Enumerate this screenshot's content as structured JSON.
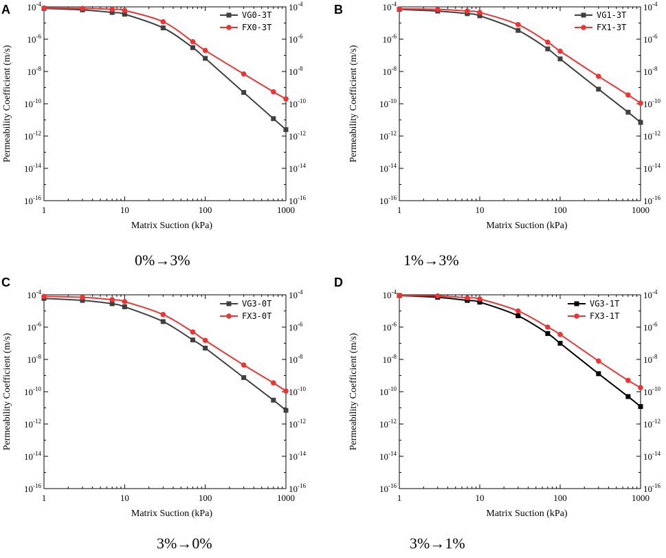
{
  "figure": {
    "captions": [
      "0%→3%",
      "1%→3%",
      "3%→0%",
      "3%→1%"
    ]
  },
  "chart_data": [
    {
      "panel": "A",
      "type": "line",
      "xscale": "log",
      "yscale": "log",
      "xlabel": "Matrix Suction (kPa)",
      "ylabel": "Permeability Coefficient (m/s)",
      "xlim": [
        1,
        1000
      ],
      "ylim": [
        1e-16,
        0.0001
      ],
      "xticks": [
        "1",
        "10",
        "100",
        "1000"
      ],
      "yticks_exp": [
        "-16",
        "-14",
        "-12",
        "-10",
        "-8",
        "-6",
        "-4"
      ],
      "ytick_base": "10",
      "legend_position": "top-right",
      "caption": "0%→3%",
      "series": [
        {
          "name": "VG0-3T",
          "color": "#404040",
          "marker": "square",
          "x": [
            1,
            3,
            7,
            10,
            30,
            70,
            100,
            300,
            700,
            1000
          ],
          "y": [
            8e-05,
            6.5e-05,
            4.5e-05,
            3.5e-05,
            5e-06,
            3e-07,
            6.5e-08,
            5e-10,
            1.2e-11,
            2.5e-12
          ]
        },
        {
          "name": "FX0-3T",
          "color": "#ee3333",
          "marker": "circle",
          "x": [
            1,
            3,
            7,
            10,
            30,
            70,
            100,
            300,
            700,
            1000
          ],
          "y": [
            8.5e-05,
            8e-05,
            7e-05,
            6e-05,
            1.2e-05,
            7e-07,
            2e-07,
            7e-09,
            5.5e-10,
            2e-10
          ]
        }
      ]
    },
    {
      "panel": "B",
      "type": "line",
      "xscale": "log",
      "yscale": "log",
      "xlabel": "Matrix Suction (kPa)",
      "ylabel": "Permeability Coefficient (m/s)",
      "xlim": [
        1,
        1000
      ],
      "ylim": [
        1e-16,
        0.0001
      ],
      "xticks": [
        "1",
        "10",
        "100",
        "1000"
      ],
      "yticks_exp": [
        "-16",
        "-14",
        "-12",
        "-10",
        "-8",
        "-6",
        "-4"
      ],
      "ytick_base": "10",
      "legend_position": "top-right",
      "caption": "1%→3%",
      "series": [
        {
          "name": "VG1-3T",
          "color": "#404040",
          "marker": "square",
          "x": [
            1,
            3,
            7,
            10,
            30,
            70,
            100,
            300,
            700,
            1000
          ],
          "y": [
            7e-05,
            5.5e-05,
            3.8e-05,
            2.8e-05,
            3.5e-06,
            2.5e-07,
            6e-08,
            8e-10,
            3e-11,
            7e-12
          ]
        },
        {
          "name": "FX1-3T",
          "color": "#ee3333",
          "marker": "circle",
          "x": [
            1,
            3,
            7,
            10,
            30,
            70,
            100,
            300,
            700,
            1000
          ],
          "y": [
            7.5e-05,
            7e-05,
            5.5e-05,
            4.5e-05,
            8e-06,
            6.5e-07,
            1.8e-07,
            5e-09,
            3.5e-10,
            1.1e-10
          ]
        }
      ]
    },
    {
      "panel": "C",
      "type": "line",
      "xscale": "log",
      "yscale": "log",
      "xlabel": "Matrix Suction (kPa)",
      "ylabel": "Permeability Coefficient (m/s)",
      "xlim": [
        1,
        1000
      ],
      "ylim": [
        1e-16,
        0.0001
      ],
      "xticks": [
        "1",
        "10",
        "100",
        "1000"
      ],
      "yticks_exp": [
        "-16",
        "-14",
        "-12",
        "-10",
        "-8",
        "-6",
        "-4"
      ],
      "ytick_base": "10",
      "legend_position": "top-right",
      "caption": "3%→0%",
      "series": [
        {
          "name": "VG3-0T",
          "color": "#404040",
          "marker": "square",
          "x": [
            1,
            3,
            7,
            10,
            30,
            70,
            100,
            300,
            700,
            1000
          ],
          "y": [
            6e-05,
            4.5e-05,
            2.8e-05,
            1.8e-05,
            2.2e-06,
            1.6e-07,
            5e-08,
            7.5e-10,
            3e-11,
            7e-12
          ]
        },
        {
          "name": "FX3-0T",
          "color": "#ee3333",
          "marker": "circle",
          "x": [
            1,
            3,
            7,
            10,
            30,
            70,
            100,
            300,
            700,
            1000
          ],
          "y": [
            8e-05,
            7e-05,
            5e-05,
            3.8e-05,
            6e-06,
            5e-07,
            1.5e-07,
            4.5e-09,
            3.5e-10,
            1.1e-10
          ]
        }
      ]
    },
    {
      "panel": "D",
      "type": "line",
      "xscale": "log",
      "yscale": "log",
      "xlabel": "Matrix Suction (kPa)",
      "ylabel": "Permeability Coefficient (m/s)",
      "xlim": [
        1,
        1000
      ],
      "ylim": [
        1e-16,
        0.0001
      ],
      "xticks": [
        "1",
        "10",
        "100",
        "1000"
      ],
      "yticks_exp": [
        "-16",
        "-14",
        "-12",
        "-10",
        "-8",
        "-6",
        "-4"
      ],
      "ytick_base": "10",
      "legend_position": "top-right",
      "caption": "3%→1%",
      "series": [
        {
          "name": "VG3-1T",
          "color": "#000000",
          "marker": "square",
          "x": [
            1,
            3,
            7,
            10,
            30,
            70,
            100,
            300,
            700,
            1000
          ],
          "y": [
            9e-05,
            7e-05,
            4.5e-05,
            3.5e-05,
            5e-06,
            4e-07,
            1e-07,
            1.3e-09,
            5e-11,
            1.2e-11
          ]
        },
        {
          "name": "FX3-1T",
          "color": "#ee3333",
          "marker": "circle",
          "x": [
            1,
            3,
            7,
            10,
            30,
            70,
            100,
            300,
            700,
            1000
          ],
          "y": [
            9e-05,
            8.5e-05,
            6.5e-05,
            5.5e-05,
            1e-05,
            1e-06,
            3.5e-07,
            8e-09,
            5e-10,
            1.8e-10
          ]
        }
      ]
    }
  ]
}
